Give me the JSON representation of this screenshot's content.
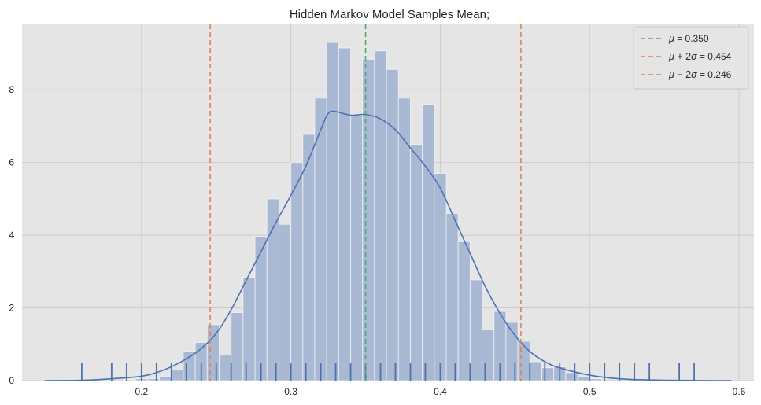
{
  "chart_data": {
    "type": "bar",
    "title": "Hidden Markov Model Samples Mean;",
    "xlabel": "",
    "ylabel": "",
    "xlim": [
      0.12,
      0.61
    ],
    "ylim": [
      0,
      9.8
    ],
    "xticks": [
      "0.2",
      "0.3",
      "0.4",
      "0.5",
      "0.6"
    ],
    "yticks": [
      "0",
      "2",
      "4",
      "6",
      "8"
    ],
    "grid": true,
    "legend_position": "top-right",
    "colors": {
      "background": "#e5e5e5",
      "grid": "#cccccc",
      "bars": "#a9b8d3",
      "kde": "#4c72b0",
      "rug": "#4c72b0",
      "mean_line": "#55a868",
      "sigma_lines": "#dd8452"
    },
    "histogram": {
      "bin_width": 0.008,
      "bars": [
        {
          "x": 0.188,
          "value": 0.02
        },
        {
          "x": 0.196,
          "value": 0.05
        },
        {
          "x": 0.204,
          "value": 0.05
        },
        {
          "x": 0.212,
          "value": 0.12
        },
        {
          "x": 0.22,
          "value": 0.29
        },
        {
          "x": 0.228,
          "value": 0.8
        },
        {
          "x": 0.236,
          "value": 1.05
        },
        {
          "x": 0.244,
          "value": 1.54
        },
        {
          "x": 0.252,
          "value": 0.7
        },
        {
          "x": 0.26,
          "value": 1.87
        },
        {
          "x": 0.268,
          "value": 2.84
        },
        {
          "x": 0.276,
          "value": 3.97
        },
        {
          "x": 0.284,
          "value": 5.0
        },
        {
          "x": 0.292,
          "value": 4.3
        },
        {
          "x": 0.3,
          "value": 6.0
        },
        {
          "x": 0.308,
          "value": 6.77
        },
        {
          "x": 0.316,
          "value": 7.77
        },
        {
          "x": 0.324,
          "value": 9.3
        },
        {
          "x": 0.332,
          "value": 9.15
        },
        {
          "x": 0.34,
          "value": 7.3
        },
        {
          "x": 0.348,
          "value": 8.84
        },
        {
          "x": 0.356,
          "value": 9.07
        },
        {
          "x": 0.364,
          "value": 8.56
        },
        {
          "x": 0.372,
          "value": 7.77
        },
        {
          "x": 0.38,
          "value": 6.5
        },
        {
          "x": 0.388,
          "value": 7.6
        },
        {
          "x": 0.396,
          "value": 5.7
        },
        {
          "x": 0.404,
          "value": 4.6
        },
        {
          "x": 0.412,
          "value": 3.82
        },
        {
          "x": 0.42,
          "value": 2.77
        },
        {
          "x": 0.428,
          "value": 1.4
        },
        {
          "x": 0.436,
          "value": 1.9
        },
        {
          "x": 0.444,
          "value": 1.6
        },
        {
          "x": 0.452,
          "value": 1.08
        },
        {
          "x": 0.46,
          "value": 0.52
        },
        {
          "x": 0.468,
          "value": 0.35
        },
        {
          "x": 0.476,
          "value": 0.38
        },
        {
          "x": 0.484,
          "value": 0.22
        },
        {
          "x": 0.492,
          "value": 0.1
        },
        {
          "x": 0.5,
          "value": 0.05
        }
      ]
    },
    "kde": {
      "x": [
        0.135,
        0.16,
        0.18,
        0.2,
        0.21,
        0.22,
        0.23,
        0.24,
        0.25,
        0.26,
        0.27,
        0.28,
        0.29,
        0.3,
        0.31,
        0.32,
        0.325,
        0.33,
        0.34,
        0.35,
        0.36,
        0.37,
        0.38,
        0.39,
        0.4,
        0.41,
        0.42,
        0.43,
        0.44,
        0.45,
        0.46,
        0.47,
        0.48,
        0.5,
        0.52,
        0.55,
        0.595
      ],
      "y": [
        0.0,
        0.01,
        0.05,
        0.12,
        0.22,
        0.38,
        0.6,
        0.88,
        1.3,
        1.95,
        2.75,
        3.55,
        4.35,
        5.1,
        5.9,
        6.9,
        7.35,
        7.4,
        7.3,
        7.32,
        7.2,
        6.9,
        6.4,
        5.9,
        5.3,
        4.4,
        3.5,
        2.6,
        1.85,
        1.25,
        0.8,
        0.52,
        0.35,
        0.15,
        0.05,
        0.01,
        0.0
      ]
    },
    "rug": [
      0.16,
      0.18,
      0.19,
      0.2,
      0.21,
      0.22,
      0.23,
      0.24,
      0.25,
      0.26,
      0.27,
      0.28,
      0.29,
      0.3,
      0.31,
      0.32,
      0.33,
      0.34,
      0.35,
      0.36,
      0.37,
      0.38,
      0.39,
      0.4,
      0.41,
      0.42,
      0.43,
      0.44,
      0.45,
      0.46,
      0.47,
      0.48,
      0.49,
      0.5,
      0.51,
      0.52,
      0.53,
      0.54,
      0.56,
      0.57
    ],
    "reference_lines": [
      {
        "label": "$\\mu$ =  0.350",
        "x": 0.35,
        "color": "#55a868"
      },
      {
        "label": "$\\mu+2\\sigma$ = 0.454",
        "x": 0.454,
        "color": "#dd8452"
      },
      {
        "label": "$\\mu-2\\sigma$ = 0.246",
        "x": 0.246,
        "color": "#dd8452"
      }
    ],
    "legend": [
      {
        "symbol": "μ",
        "op": "",
        "rest": " =  0.350",
        "color": "#55a868"
      },
      {
        "symbol": "μ",
        "op": " + 2",
        "sigma": "σ",
        "rest": " = 0.454",
        "color": "#dd8452"
      },
      {
        "symbol": "μ",
        "op": " − 2",
        "sigma": "σ",
        "rest": " = 0.246",
        "color": "#dd8452"
      }
    ]
  }
}
